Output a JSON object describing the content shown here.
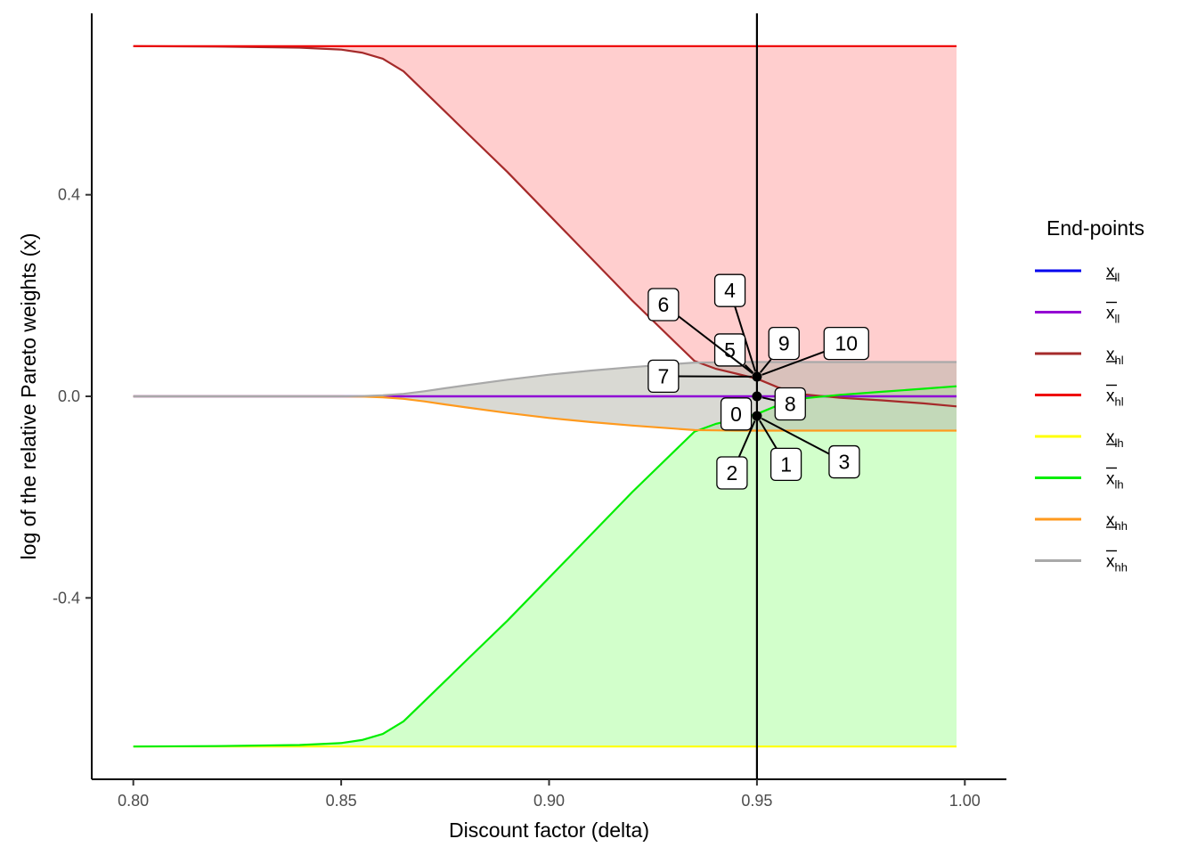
{
  "chart_data": {
    "type": "area",
    "title": "",
    "xlabel": "Discount factor (delta)",
    "ylabel": "log of the relative Pareto weights (x)",
    "xlim": [
      0.79,
      1.01
    ],
    "ylim": [
      -0.76,
      0.76
    ],
    "x_ticks": [
      {
        "value": 0.8,
        "label": "0.80"
      },
      {
        "value": 0.85,
        "label": "0.85"
      },
      {
        "value": 0.9,
        "label": "0.90"
      },
      {
        "value": 0.95,
        "label": "0.95"
      },
      {
        "value": 1.0,
        "label": "1.00"
      }
    ],
    "y_ticks": [
      {
        "value": 0.4,
        "label": "0.4"
      },
      {
        "value": 0.0,
        "label": "0.0"
      },
      {
        "value": -0.4,
        "label": "-0.4"
      }
    ],
    "grid": false,
    "vline": 0.95,
    "legend": {
      "title": "End-points",
      "position": "right",
      "entries": [
        {
          "key": "ll_low",
          "base": "x",
          "sub": "ll",
          "bar": "under",
          "color": "#0000ee"
        },
        {
          "key": "ll_high",
          "base": "x",
          "sub": "ll",
          "bar": "over",
          "color": "#9400d3"
        },
        {
          "key": "hl_low",
          "base": "x",
          "sub": "hl",
          "bar": "under",
          "color": "#a52a2a"
        },
        {
          "key": "hl_high",
          "base": "x",
          "sub": "hl",
          "bar": "over",
          "color": "#ee0000"
        },
        {
          "key": "lh_low",
          "base": "x",
          "sub": "lh",
          "bar": "under",
          "color": "#ffff00"
        },
        {
          "key": "lh_high",
          "base": "x",
          "sub": "lh",
          "bar": "over",
          "color": "#00ee00"
        },
        {
          "key": "hh_low",
          "base": "x",
          "sub": "hh",
          "bar": "under",
          "color": "#ff9a1e"
        },
        {
          "key": "hh_high",
          "base": "x",
          "sub": "hh",
          "bar": "over",
          "color": "#a9a9a9"
        }
      ]
    },
    "x": [
      0.8,
      0.82,
      0.84,
      0.85,
      0.855,
      0.86,
      0.865,
      0.87,
      0.875,
      0.88,
      0.89,
      0.9,
      0.91,
      0.92,
      0.93,
      0.935,
      0.94,
      0.945,
      0.95,
      0.955,
      0.96,
      0.97,
      0.98,
      0.99,
      0.998
    ],
    "series": [
      {
        "key": "ll_low",
        "color": "#0000ee",
        "values": [
          0.0,
          0.0,
          0.0,
          0.0,
          0.0,
          0.0,
          0.0,
          0.0,
          0.0,
          0.0,
          0.0,
          0.0,
          0.0,
          0.0,
          0.0,
          0.0,
          0.0,
          0.0,
          0.0,
          0.0,
          0.0,
          0.0,
          0.0,
          0.0,
          0.0
        ]
      },
      {
        "key": "ll_high",
        "color": "#9400d3",
        "values": [
          0.0,
          0.0,
          0.0,
          0.0,
          0.0,
          0.0,
          0.0,
          0.0,
          0.0,
          0.0,
          0.0,
          0.0,
          0.0,
          0.0,
          0.0,
          0.0,
          0.0,
          0.0,
          0.0,
          0.0,
          0.0,
          0.0,
          0.0,
          0.0,
          0.0
        ]
      },
      {
        "key": "hl_low",
        "color": "#a52a2a",
        "values": [
          0.695,
          0.694,
          0.692,
          0.688,
          0.682,
          0.67,
          0.645,
          0.605,
          0.565,
          0.525,
          0.445,
          0.36,
          0.275,
          0.19,
          0.11,
          0.07,
          0.055,
          0.045,
          0.035,
          0.018,
          0.005,
          -0.003,
          -0.008,
          -0.014,
          -0.02
        ]
      },
      {
        "key": "hl_high",
        "color": "#ee0000",
        "values": [
          0.695,
          0.695,
          0.695,
          0.695,
          0.695,
          0.695,
          0.695,
          0.695,
          0.695,
          0.695,
          0.695,
          0.695,
          0.695,
          0.695,
          0.695,
          0.695,
          0.695,
          0.695,
          0.695,
          0.695,
          0.695,
          0.695,
          0.695,
          0.695,
          0.695
        ]
      },
      {
        "key": "lh_low",
        "color": "#ffff00",
        "values": [
          -0.695,
          -0.695,
          -0.695,
          -0.695,
          -0.695,
          -0.695,
          -0.695,
          -0.695,
          -0.695,
          -0.695,
          -0.695,
          -0.695,
          -0.695,
          -0.695,
          -0.695,
          -0.695,
          -0.695,
          -0.695,
          -0.695,
          -0.695,
          -0.695,
          -0.695,
          -0.695,
          -0.695,
          -0.695
        ]
      },
      {
        "key": "lh_high",
        "color": "#00ee00",
        "values": [
          -0.695,
          -0.694,
          -0.692,
          -0.688,
          -0.682,
          -0.67,
          -0.645,
          -0.605,
          -0.565,
          -0.525,
          -0.445,
          -0.36,
          -0.275,
          -0.19,
          -0.11,
          -0.07,
          -0.055,
          -0.045,
          -0.035,
          -0.018,
          -0.005,
          0.003,
          0.009,
          0.015,
          0.02
        ]
      },
      {
        "key": "hh_low",
        "color": "#ff9a1e",
        "values": [
          0.0,
          0.0,
          0.0,
          0.0,
          -0.0005,
          -0.002,
          -0.005,
          -0.01,
          -0.016,
          -0.022,
          -0.033,
          -0.043,
          -0.051,
          -0.058,
          -0.064,
          -0.067,
          -0.0675,
          -0.068,
          -0.068,
          -0.068,
          -0.068,
          -0.068,
          -0.068,
          -0.068,
          -0.068
        ]
      },
      {
        "key": "hh_high",
        "color": "#a9a9a9",
        "values": [
          0.0,
          0.0,
          0.0,
          0.0,
          0.0005,
          0.002,
          0.005,
          0.01,
          0.016,
          0.022,
          0.033,
          0.043,
          0.051,
          0.058,
          0.064,
          0.067,
          0.0675,
          0.068,
          0.068,
          0.068,
          0.068,
          0.068,
          0.068,
          0.068,
          0.068
        ]
      }
    ],
    "ribbons": [
      {
        "lower": "hl_low",
        "upper": "hl_high",
        "color": "#ff9e9e",
        "opacity": 0.5
      },
      {
        "lower": "lh_low",
        "upper": "lh_high",
        "color": "#a6ff98",
        "opacity": 0.5
      },
      {
        "lower": "hh_low",
        "upper": "hh_high",
        "color": "#b3b3a8",
        "opacity": 0.5
      }
    ],
    "points": [
      {
        "x": 0.95,
        "y": 0.039
      },
      {
        "x": 0.95,
        "y": 0.0
      },
      {
        "x": 0.95,
        "y": -0.039
      }
    ],
    "callouts": [
      {
        "label": "0",
        "x": 0.945,
        "y": -0.035,
        "px": 0.95,
        "py": -0.039
      },
      {
        "label": "1",
        "x": 0.957,
        "y": -0.135,
        "px": 0.95,
        "py": -0.039
      },
      {
        "label": "2",
        "x": 0.944,
        "y": -0.152,
        "px": 0.95,
        "py": -0.039
      },
      {
        "label": "3",
        "x": 0.971,
        "y": -0.13,
        "px": 0.95,
        "py": -0.039
      },
      {
        "label": "4",
        "x": 0.9435,
        "y": 0.21,
        "px": 0.95,
        "py": 0.039
      },
      {
        "label": "5",
        "x": 0.9435,
        "y": 0.092,
        "px": 0.95,
        "py": 0.039
      },
      {
        "label": "6",
        "x": 0.9275,
        "y": 0.182,
        "px": 0.95,
        "py": 0.039
      },
      {
        "label": "7",
        "x": 0.9275,
        "y": 0.04,
        "px": 0.95,
        "py": 0.039
      },
      {
        "label": "8",
        "x": 0.958,
        "y": -0.015,
        "px": 0.95,
        "py": 0.0
      },
      {
        "label": "9",
        "x": 0.9565,
        "y": 0.105,
        "px": 0.95,
        "py": 0.039
      },
      {
        "label": "10",
        "x": 0.9715,
        "y": 0.105,
        "px": 0.95,
        "py": 0.039
      }
    ]
  }
}
